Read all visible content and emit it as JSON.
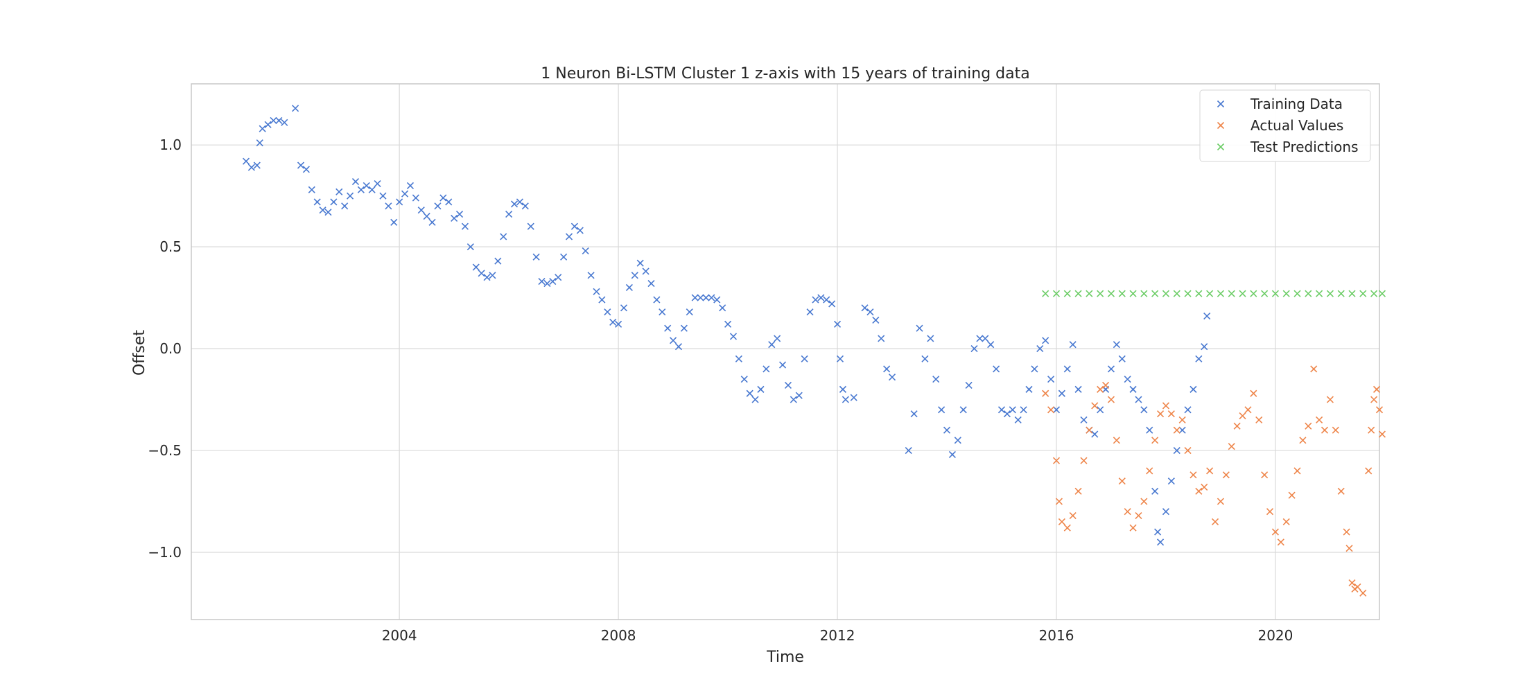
{
  "chart_data": {
    "type": "scatter",
    "title": "1 Neuron Bi-LSTM Cluster 1 z-axis with 15 years of training data",
    "xlabel": "Time",
    "ylabel": "Offset",
    "xlim": [
      2000.2,
      2021.9
    ],
    "ylim": [
      -1.33,
      1.3
    ],
    "x_ticks": [
      2004,
      2008,
      2012,
      2016,
      2020
    ],
    "y_ticks": [
      -1.0,
      -0.5,
      0.0,
      0.5,
      1.0
    ],
    "x_tick_labels": [
      "2004",
      "2008",
      "2012",
      "2016",
      "2020"
    ],
    "y_tick_labels": [
      "−1.0",
      "−0.5",
      "0.0",
      "0.5",
      "1.0"
    ],
    "grid": true,
    "legend_position": "top-right",
    "marker": "x",
    "series": [
      {
        "name": "Training Data",
        "color": "#4878d0",
        "points": [
          [
            2001.2,
            0.92
          ],
          [
            2001.3,
            0.89
          ],
          [
            2001.4,
            0.9
          ],
          [
            2001.45,
            1.01
          ],
          [
            2001.5,
            1.08
          ],
          [
            2001.6,
            1.1
          ],
          [
            2001.7,
            1.12
          ],
          [
            2001.8,
            1.12
          ],
          [
            2001.9,
            1.11
          ],
          [
            2002.1,
            1.18
          ],
          [
            2002.2,
            0.9
          ],
          [
            2002.3,
            0.88
          ],
          [
            2002.4,
            0.78
          ],
          [
            2002.5,
            0.72
          ],
          [
            2002.6,
            0.68
          ],
          [
            2002.7,
            0.67
          ],
          [
            2002.8,
            0.72
          ],
          [
            2002.9,
            0.77
          ],
          [
            2003.0,
            0.7
          ],
          [
            2003.1,
            0.75
          ],
          [
            2003.2,
            0.82
          ],
          [
            2003.3,
            0.78
          ],
          [
            2003.4,
            0.8
          ],
          [
            2003.5,
            0.78
          ],
          [
            2003.6,
            0.81
          ],
          [
            2003.7,
            0.75
          ],
          [
            2003.8,
            0.7
          ],
          [
            2003.9,
            0.62
          ],
          [
            2004.0,
            0.72
          ],
          [
            2004.1,
            0.76
          ],
          [
            2004.2,
            0.8
          ],
          [
            2004.3,
            0.74
          ],
          [
            2004.4,
            0.68
          ],
          [
            2004.5,
            0.65
          ],
          [
            2004.6,
            0.62
          ],
          [
            2004.7,
            0.7
          ],
          [
            2004.8,
            0.74
          ],
          [
            2004.9,
            0.72
          ],
          [
            2005.0,
            0.64
          ],
          [
            2005.1,
            0.66
          ],
          [
            2005.2,
            0.6
          ],
          [
            2005.3,
            0.5
          ],
          [
            2005.4,
            0.4
          ],
          [
            2005.5,
            0.37
          ],
          [
            2005.6,
            0.35
          ],
          [
            2005.7,
            0.36
          ],
          [
            2005.8,
            0.43
          ],
          [
            2005.9,
            0.55
          ],
          [
            2006.0,
            0.66
          ],
          [
            2006.1,
            0.71
          ],
          [
            2006.2,
            0.72
          ],
          [
            2006.3,
            0.7
          ],
          [
            2006.4,
            0.6
          ],
          [
            2006.5,
            0.45
          ],
          [
            2006.6,
            0.33
          ],
          [
            2006.7,
            0.32
          ],
          [
            2006.8,
            0.33
          ],
          [
            2006.9,
            0.35
          ],
          [
            2007.0,
            0.45
          ],
          [
            2007.1,
            0.55
          ],
          [
            2007.2,
            0.6
          ],
          [
            2007.3,
            0.58
          ],
          [
            2007.4,
            0.48
          ],
          [
            2007.5,
            0.36
          ],
          [
            2007.6,
            0.28
          ],
          [
            2007.7,
            0.24
          ],
          [
            2007.8,
            0.18
          ],
          [
            2007.9,
            0.13
          ],
          [
            2008.0,
            0.12
          ],
          [
            2008.1,
            0.2
          ],
          [
            2008.2,
            0.3
          ],
          [
            2008.3,
            0.36
          ],
          [
            2008.4,
            0.42
          ],
          [
            2008.5,
            0.38
          ],
          [
            2008.6,
            0.32
          ],
          [
            2008.7,
            0.24
          ],
          [
            2008.8,
            0.18
          ],
          [
            2008.9,
            0.1
          ],
          [
            2009.0,
            0.04
          ],
          [
            2009.1,
            0.01
          ],
          [
            2009.2,
            0.1
          ],
          [
            2009.3,
            0.18
          ],
          [
            2009.4,
            0.25
          ],
          [
            2009.5,
            0.25
          ],
          [
            2009.6,
            0.25
          ],
          [
            2009.7,
            0.25
          ],
          [
            2009.8,
            0.24
          ],
          [
            2009.9,
            0.2
          ],
          [
            2010.0,
            0.12
          ],
          [
            2010.1,
            0.06
          ],
          [
            2010.2,
            -0.05
          ],
          [
            2010.3,
            -0.15
          ],
          [
            2010.4,
            -0.22
          ],
          [
            2010.5,
            -0.25
          ],
          [
            2010.6,
            -0.2
          ],
          [
            2010.7,
            -0.1
          ],
          [
            2010.8,
            0.02
          ],
          [
            2010.9,
            0.05
          ],
          [
            2011.0,
            -0.08
          ],
          [
            2011.1,
            -0.18
          ],
          [
            2011.2,
            -0.25
          ],
          [
            2011.3,
            -0.23
          ],
          [
            2011.4,
            -0.05
          ],
          [
            2011.5,
            0.18
          ],
          [
            2011.6,
            0.24
          ],
          [
            2011.7,
            0.25
          ],
          [
            2011.8,
            0.24
          ],
          [
            2011.9,
            0.22
          ],
          [
            2012.0,
            0.12
          ],
          [
            2012.05,
            -0.05
          ],
          [
            2012.1,
            -0.2
          ],
          [
            2012.15,
            -0.25
          ],
          [
            2012.3,
            -0.24
          ],
          [
            2012.5,
            0.2
          ],
          [
            2012.6,
            0.18
          ],
          [
            2012.7,
            0.14
          ],
          [
            2012.8,
            0.05
          ],
          [
            2012.9,
            -0.1
          ],
          [
            2013.0,
            -0.14
          ],
          [
            2013.3,
            -0.5
          ],
          [
            2013.4,
            -0.32
          ],
          [
            2013.5,
            0.1
          ],
          [
            2013.6,
            -0.05
          ],
          [
            2013.7,
            0.05
          ],
          [
            2013.8,
            -0.15
          ],
          [
            2013.9,
            -0.3
          ],
          [
            2014.0,
            -0.4
          ],
          [
            2014.1,
            -0.52
          ],
          [
            2014.2,
            -0.45
          ],
          [
            2014.3,
            -0.3
          ],
          [
            2014.4,
            -0.18
          ],
          [
            2014.5,
            0.0
          ],
          [
            2014.6,
            0.05
          ],
          [
            2014.7,
            0.05
          ],
          [
            2014.8,
            0.02
          ],
          [
            2014.9,
            -0.1
          ],
          [
            2015.0,
            -0.3
          ],
          [
            2015.1,
            -0.32
          ],
          [
            2015.2,
            -0.3
          ],
          [
            2015.3,
            -0.35
          ],
          [
            2015.4,
            -0.3
          ],
          [
            2015.5,
            -0.2
          ],
          [
            2015.6,
            -0.1
          ],
          [
            2015.7,
            0.0
          ],
          [
            2015.8,
            0.04
          ],
          [
            2015.9,
            -0.15
          ],
          [
            2016.0,
            -0.3
          ],
          [
            2016.1,
            -0.22
          ],
          [
            2016.2,
            -0.1
          ],
          [
            2016.3,
            0.02
          ],
          [
            2016.4,
            -0.2
          ],
          [
            2016.5,
            -0.35
          ],
          [
            2016.6,
            -0.4
          ],
          [
            2016.7,
            -0.42
          ],
          [
            2016.8,
            -0.3
          ],
          [
            2016.9,
            -0.2
          ],
          [
            2017.0,
            -0.1
          ],
          [
            2017.1,
            0.02
          ],
          [
            2017.2,
            -0.05
          ],
          [
            2017.3,
            -0.15
          ],
          [
            2017.4,
            -0.2
          ],
          [
            2017.5,
            -0.25
          ],
          [
            2017.6,
            -0.3
          ],
          [
            2017.7,
            -0.4
          ],
          [
            2017.8,
            -0.7
          ],
          [
            2017.85,
            -0.9
          ],
          [
            2017.9,
            -0.95
          ],
          [
            2018.0,
            -0.8
          ],
          [
            2018.1,
            -0.65
          ],
          [
            2018.2,
            -0.5
          ],
          [
            2018.3,
            -0.4
          ],
          [
            2018.4,
            -0.3
          ],
          [
            2018.5,
            -0.2
          ],
          [
            2018.6,
            -0.05
          ],
          [
            2018.7,
            0.01
          ],
          [
            2018.75,
            0.16
          ]
        ]
      },
      {
        "name": "Actual Values",
        "color": "#ee854a",
        "points": [
          [
            2015.8,
            -0.22
          ],
          [
            2015.9,
            -0.3
          ],
          [
            2016.0,
            -0.55
          ],
          [
            2016.05,
            -0.75
          ],
          [
            2016.1,
            -0.85
          ],
          [
            2016.2,
            -0.88
          ],
          [
            2016.3,
            -0.82
          ],
          [
            2016.4,
            -0.7
          ],
          [
            2016.5,
            -0.55
          ],
          [
            2016.6,
            -0.4
          ],
          [
            2016.7,
            -0.28
          ],
          [
            2016.8,
            -0.2
          ],
          [
            2016.9,
            -0.18
          ],
          [
            2017.0,
            -0.25
          ],
          [
            2017.1,
            -0.45
          ],
          [
            2017.2,
            -0.65
          ],
          [
            2017.3,
            -0.8
          ],
          [
            2017.4,
            -0.88
          ],
          [
            2017.5,
            -0.82
          ],
          [
            2017.6,
            -0.75
          ],
          [
            2017.7,
            -0.6
          ],
          [
            2017.8,
            -0.45
          ],
          [
            2017.9,
            -0.32
          ],
          [
            2018.0,
            -0.28
          ],
          [
            2018.1,
            -0.32
          ],
          [
            2018.2,
            -0.4
          ],
          [
            2018.3,
            -0.35
          ],
          [
            2018.4,
            -0.5
          ],
          [
            2018.5,
            -0.62
          ],
          [
            2018.6,
            -0.7
          ],
          [
            2018.7,
            -0.68
          ],
          [
            2018.8,
            -0.6
          ],
          [
            2018.9,
            -0.85
          ],
          [
            2019.0,
            -0.75
          ],
          [
            2019.1,
            -0.62
          ],
          [
            2019.2,
            -0.48
          ],
          [
            2019.3,
            -0.38
          ],
          [
            2019.4,
            -0.33
          ],
          [
            2019.5,
            -0.3
          ],
          [
            2019.6,
            -0.22
          ],
          [
            2019.7,
            -0.35
          ],
          [
            2019.8,
            -0.62
          ],
          [
            2019.9,
            -0.8
          ],
          [
            2020.0,
            -0.9
          ],
          [
            2020.1,
            -0.95
          ],
          [
            2020.2,
            -0.85
          ],
          [
            2020.3,
            -0.72
          ],
          [
            2020.4,
            -0.6
          ],
          [
            2020.5,
            -0.45
          ],
          [
            2020.6,
            -0.38
          ],
          [
            2020.7,
            -0.1
          ],
          [
            2020.8,
            -0.35
          ],
          [
            2020.9,
            -0.4
          ],
          [
            2021.0,
            -0.25
          ],
          [
            2021.1,
            -0.4
          ],
          [
            2021.2,
            -0.7
          ],
          [
            2021.3,
            -0.9
          ],
          [
            2021.35,
            -0.98
          ],
          [
            2021.4,
            -1.15
          ],
          [
            2021.45,
            -1.18
          ],
          [
            2021.5,
            -1.17
          ],
          [
            2021.6,
            -1.2
          ],
          [
            2021.7,
            -0.6
          ],
          [
            2021.75,
            -0.4
          ],
          [
            2021.8,
            -0.25
          ],
          [
            2021.85,
            -0.2
          ],
          [
            2021.9,
            -0.3
          ],
          [
            2021.95,
            -0.42
          ]
        ]
      },
      {
        "name": "Test Predictions",
        "color": "#6acc64",
        "points": [
          [
            2015.8,
            0.27
          ],
          [
            2016.0,
            0.27
          ],
          [
            2016.2,
            0.27
          ],
          [
            2016.4,
            0.27
          ],
          [
            2016.6,
            0.27
          ],
          [
            2016.8,
            0.27
          ],
          [
            2017.0,
            0.27
          ],
          [
            2017.2,
            0.27
          ],
          [
            2017.4,
            0.27
          ],
          [
            2017.6,
            0.27
          ],
          [
            2017.8,
            0.27
          ],
          [
            2018.0,
            0.27
          ],
          [
            2018.2,
            0.27
          ],
          [
            2018.4,
            0.27
          ],
          [
            2018.6,
            0.27
          ],
          [
            2018.8,
            0.27
          ],
          [
            2019.0,
            0.27
          ],
          [
            2019.2,
            0.27
          ],
          [
            2019.4,
            0.27
          ],
          [
            2019.6,
            0.27
          ],
          [
            2019.8,
            0.27
          ],
          [
            2020.0,
            0.27
          ],
          [
            2020.2,
            0.27
          ],
          [
            2020.4,
            0.27
          ],
          [
            2020.6,
            0.27
          ],
          [
            2020.8,
            0.27
          ],
          [
            2021.0,
            0.27
          ],
          [
            2021.2,
            0.27
          ],
          [
            2021.4,
            0.27
          ],
          [
            2021.6,
            0.27
          ],
          [
            2021.8,
            0.27
          ],
          [
            2021.95,
            0.27
          ]
        ]
      }
    ]
  }
}
